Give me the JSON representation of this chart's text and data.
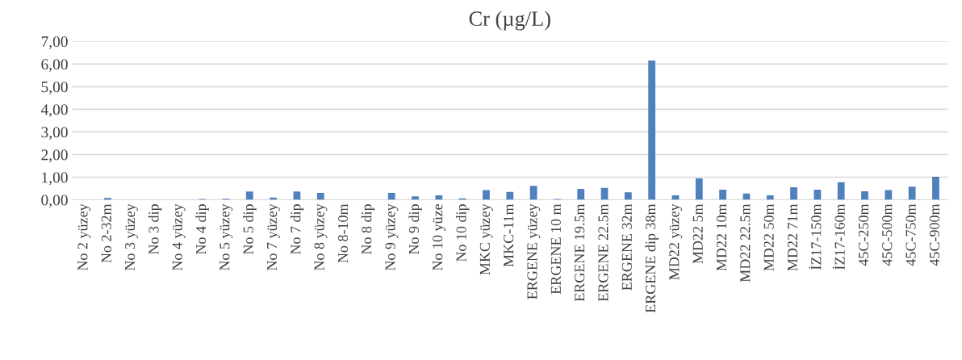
{
  "chart_data": {
    "type": "bar",
    "title": "Cr (µg/L)",
    "categories": [
      "No 2 yüzey",
      "No 2-32m",
      "No 3 yüzey",
      "No 3 dip",
      "No 4 yüzey",
      "No 4 dip",
      "No 5 yüzey",
      "No 5 dip",
      "No 7 yüzey",
      "No 7 dip",
      "No 8 yüzey",
      "No 8-10m",
      "No 8 dip",
      "No 9 yüzey",
      "No 9 dip",
      "No 10 yüze",
      "No 10 dip",
      "MKC yüzey",
      "MKC-11m",
      "ERGENE yüzey",
      "ERGENE 10 m",
      "ERGENE 19.5m",
      "ERGENE 22.5m",
      "ERGENE 32m",
      "ERGENE dip 38m",
      "MD22 yüzey",
      "MD22 5m",
      "MD22 10m",
      "MD22 22.5m",
      "MD22 50m",
      "MD22 71m",
      "İZ17-150m",
      "İZ17-160m",
      "45C-250m",
      "45C-500m",
      "45C-750m",
      "45C-900m"
    ],
    "values": [
      0,
      0.08,
      0,
      0,
      0,
      0.04,
      0.05,
      0.37,
      0.1,
      0.37,
      0.3,
      0,
      0,
      0.3,
      0.15,
      0.2,
      0.06,
      0.43,
      0.35,
      0.62,
      0.04,
      0.48,
      0.53,
      0.33,
      6.15,
      0.2,
      0.95,
      0.45,
      0.28,
      0.2,
      0.55,
      0.45,
      0.78,
      0.38,
      0.43,
      0.58,
      1.02
    ],
    "color": "#4f81bd",
    "ylim": [
      0,
      7
    ],
    "yticks": [
      {
        "value": 0,
        "label": "0,00"
      },
      {
        "value": 1,
        "label": "1,00"
      },
      {
        "value": 2,
        "label": "2,00"
      },
      {
        "value": 3,
        "label": "3,00"
      },
      {
        "value": 4,
        "label": "4,00"
      },
      {
        "value": 5,
        "label": "5,00"
      },
      {
        "value": 6,
        "label": "6,00"
      },
      {
        "value": 7,
        "label": "7,00"
      }
    ],
    "grid": "y"
  }
}
